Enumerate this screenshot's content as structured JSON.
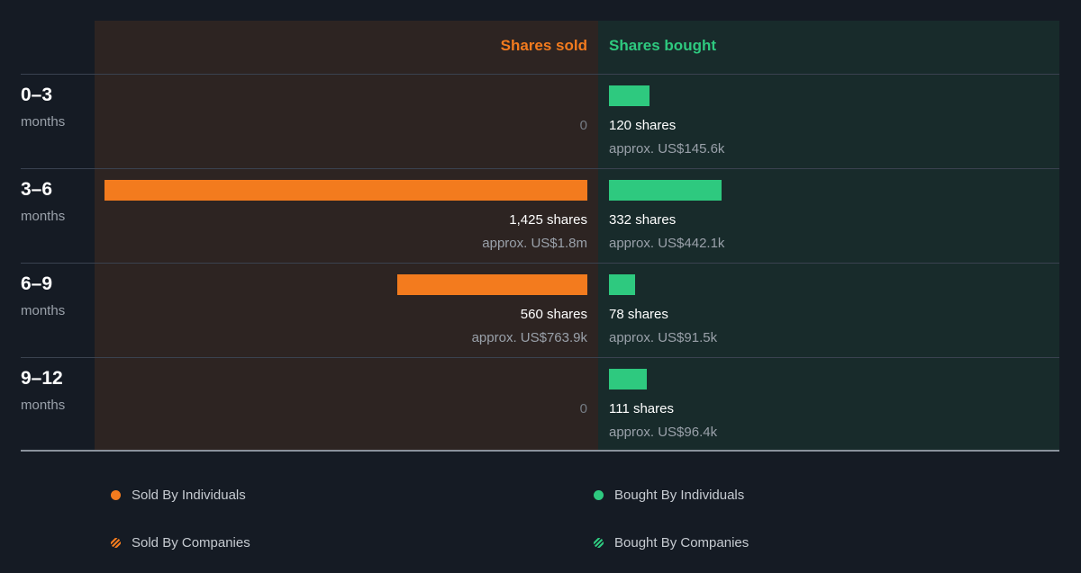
{
  "colors": {
    "sold": "#f37b1e",
    "bought": "#2ec97f",
    "background": "#151b24"
  },
  "chart_data": {
    "type": "bar",
    "headers": {
      "sold": "Shares sold",
      "bought": "Shares bought"
    },
    "categories": [
      {
        "period": "0–3",
        "unit": "months"
      },
      {
        "period": "3–6",
        "unit": "months"
      },
      {
        "period": "6–9",
        "unit": "months"
      },
      {
        "period": "9–12",
        "unit": "months"
      }
    ],
    "series": [
      {
        "name": "Shares sold",
        "values": [
          0,
          1425,
          560,
          0
        ],
        "labels": [
          "0",
          "1,425 shares",
          "560 shares",
          "0"
        ],
        "approx": [
          "",
          "approx. US$1.8m",
          "approx. US$763.9k",
          ""
        ]
      },
      {
        "name": "Shares bought",
        "values": [
          120,
          332,
          78,
          111
        ],
        "labels": [
          "120 shares",
          "332 shares",
          "78 shares",
          "111 shares"
        ],
        "approx": [
          "approx. US$145.6k",
          "approx. US$442.1k",
          "approx. US$91.5k",
          "approx. US$96.4k"
        ]
      }
    ],
    "legend": [
      {
        "label": "Sold By Individuals",
        "style": "solid",
        "color": "#f37b1e"
      },
      {
        "label": "Bought By Individuals",
        "style": "solid",
        "color": "#2ec97f"
      },
      {
        "label": "Sold By Companies",
        "style": "striped",
        "color": "#f37b1e"
      },
      {
        "label": "Bought By Companies",
        "style": "striped",
        "color": "#2ec97f"
      }
    ]
  }
}
